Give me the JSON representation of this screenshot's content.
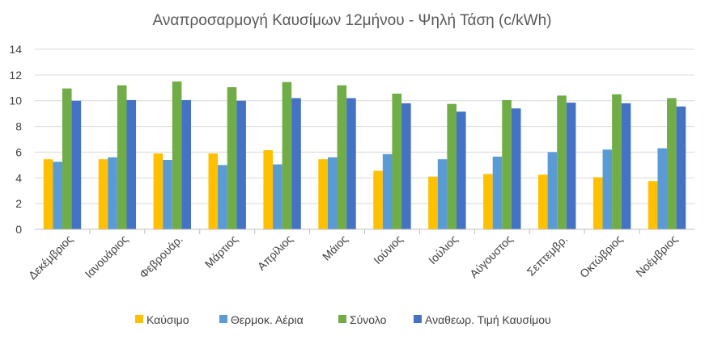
{
  "chart_data": {
    "type": "bar",
    "title": "Αναπροσαρμογή Καυσίμων 12μήνου - Ψηλή Τάση  (c/kWh)",
    "xlabel": "",
    "ylabel": "",
    "ylim": [
      0,
      14
    ],
    "yticks": [
      "0",
      "2",
      "4",
      "6",
      "8",
      "10",
      "12",
      "14"
    ],
    "grid": true,
    "legend_position": "bottom",
    "categories": [
      "Δεκέμβριος",
      "Ιανουάριος",
      "Φεβρουάρ.",
      "Μάρτιος",
      "Απρίλιος",
      "Μάιος",
      "Ιούνιος",
      "Ιούλιος",
      "Αύγουστος",
      "Σεπτεμβρ.",
      "Οκτώβριος",
      "Νοέμβριος"
    ],
    "series": [
      {
        "name": "Καύσιμο",
        "color": "#FFC000",
        "values": [
          5.45,
          5.45,
          5.9,
          5.9,
          6.15,
          5.45,
          4.55,
          4.1,
          4.3,
          4.25,
          4.05,
          3.75
        ]
      },
      {
        "name": "Θερμοκ. Αέρια",
        "color": "#5B9BD5",
        "values": [
          5.25,
          5.6,
          5.4,
          5.0,
          5.05,
          5.6,
          5.85,
          5.45,
          5.65,
          6.0,
          6.2,
          6.3
        ]
      },
      {
        "name": "Σύνολο",
        "color": "#70AD47",
        "values": [
          10.95,
          11.2,
          11.5,
          11.05,
          11.45,
          11.2,
          10.55,
          9.75,
          10.05,
          10.4,
          10.5,
          10.2
        ]
      },
      {
        "name": "Αναθεωρ. Τιμή Καυσίμου",
        "color": "#4472C4",
        "values": [
          10.0,
          10.05,
          10.05,
          10.0,
          10.2,
          10.2,
          9.8,
          9.15,
          9.4,
          9.85,
          9.8,
          9.55
        ]
      }
    ]
  }
}
